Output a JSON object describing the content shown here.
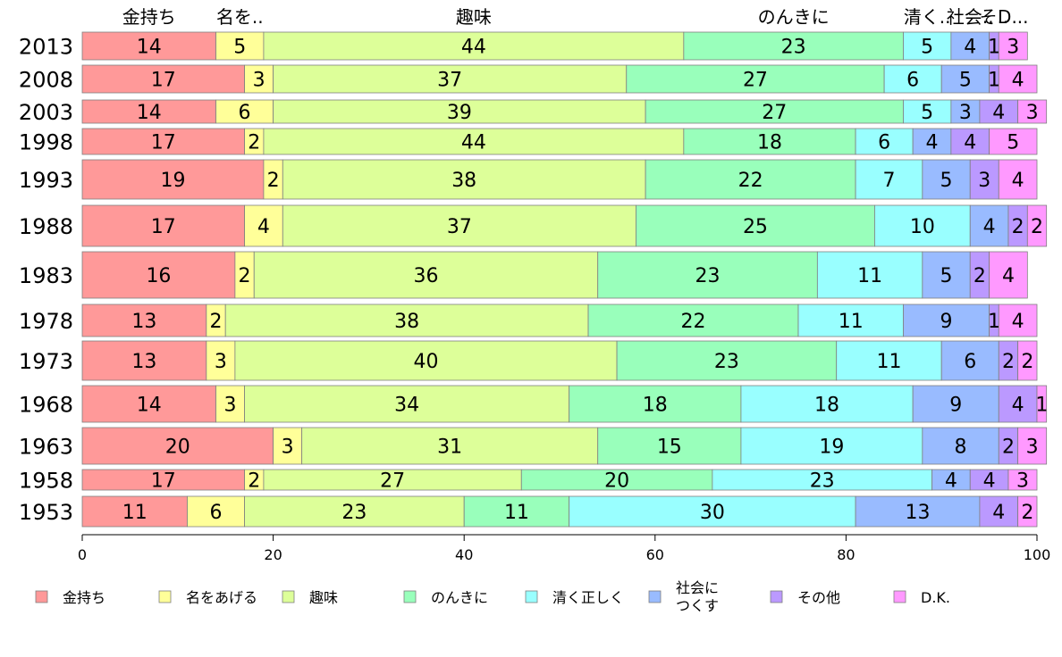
{
  "chart_data": {
    "type": "bar",
    "orientation": "horizontal",
    "stacked": true,
    "xlim": [
      0,
      100
    ],
    "xticks": [
      "0",
      "20",
      "40",
      "60",
      "80",
      "100"
    ],
    "categories": [
      "2013",
      "2008",
      "2003",
      "1998",
      "1993",
      "1988",
      "1983",
      "1978",
      "1973",
      "1968",
      "1963",
      "1958",
      "1953"
    ],
    "top_labels": [
      "金持ち",
      "名を..",
      "趣味",
      "のんきに",
      "清く..",
      "社会..",
      "そ..",
      "D..."
    ],
    "series": [
      {
        "name": "金持ち",
        "color": "#ff9999",
        "values": [
          14,
          17,
          14,
          17,
          19,
          17,
          16,
          13,
          13,
          14,
          20,
          17,
          11
        ]
      },
      {
        "name": "名をあげる",
        "color": "#ffff99",
        "values": [
          5,
          3,
          6,
          2,
          2,
          4,
          2,
          2,
          3,
          3,
          3,
          2,
          6
        ]
      },
      {
        "name": "趣味",
        "color": "#ddff99",
        "values": [
          44,
          37,
          39,
          44,
          38,
          37,
          36,
          38,
          40,
          34,
          31,
          27,
          23
        ]
      },
      {
        "name": "のんきに",
        "color": "#99ffbb",
        "values": [
          23,
          27,
          27,
          18,
          22,
          25,
          23,
          22,
          23,
          18,
          15,
          20,
          11
        ]
      },
      {
        "name": "清く正しく",
        "color": "#99ffff",
        "values": [
          5,
          6,
          5,
          6,
          7,
          10,
          11,
          11,
          11,
          18,
          19,
          23,
          30
        ]
      },
      {
        "name": "社会に\nつくす",
        "color": "#99bbff",
        "values": [
          4,
          5,
          3,
          4,
          5,
          4,
          5,
          9,
          6,
          9,
          8,
          4,
          13
        ]
      },
      {
        "name": "その他",
        "color": "#bb99ff",
        "values": [
          1,
          1,
          4,
          4,
          3,
          2,
          2,
          1,
          2,
          4,
          2,
          4,
          4
        ]
      },
      {
        "name": "D.K.",
        "color": "#ff99ff",
        "values": [
          3,
          4,
          3,
          5,
          4,
          2,
          4,
          4,
          2,
          1,
          3,
          3,
          2
        ]
      }
    ]
  }
}
